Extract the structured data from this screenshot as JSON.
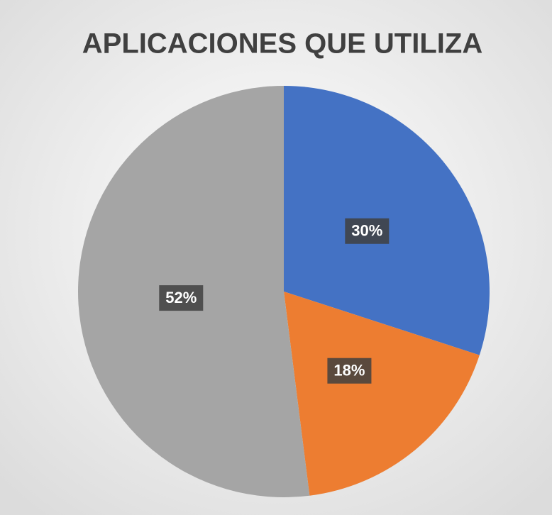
{
  "chart_data": {
    "type": "pie",
    "title": "APLICACIONES QUE UTILIZA",
    "values": [
      30,
      18,
      52
    ],
    "value_labels": [
      "30%",
      "18%",
      "52%"
    ],
    "colors": [
      "#4472c4",
      "#ed7d31",
      "#a5a5a5"
    ]
  }
}
